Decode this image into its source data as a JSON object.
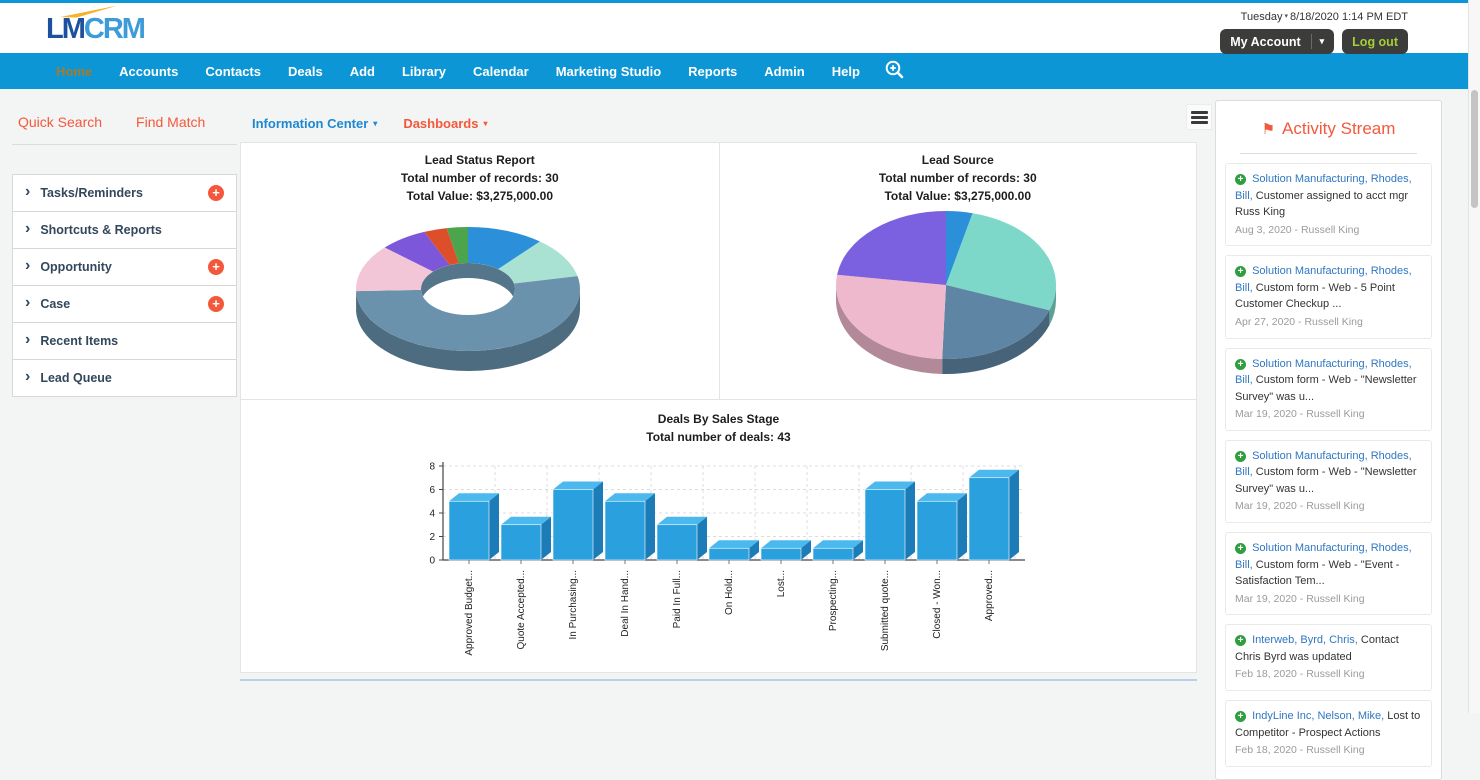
{
  "icons": {
    "caret": "▾",
    "chevron": "›",
    "plus": "+",
    "flag": "⚑"
  },
  "header": {
    "logo_lm": "LM",
    "logo_crm": "CRM",
    "day": "Tuesday",
    "datetime": "8/18/2020 1:14 PM EDT",
    "my_account": "My Account",
    "logout": "Log out"
  },
  "nav": {
    "items": [
      {
        "label": "Home",
        "active": true
      },
      {
        "label": "Accounts"
      },
      {
        "label": "Contacts"
      },
      {
        "label": "Deals"
      },
      {
        "label": "Add"
      },
      {
        "label": "Library"
      },
      {
        "label": "Calendar"
      },
      {
        "label": "Marketing Studio"
      },
      {
        "label": "Reports"
      },
      {
        "label": "Admin"
      },
      {
        "label": "Help"
      }
    ]
  },
  "sidebar": {
    "quick_search": "Quick Search",
    "find_match": "Find Match",
    "sections": [
      {
        "label": "Tasks/Reminders",
        "add": true
      },
      {
        "label": "Shortcuts & Reports"
      },
      {
        "label": "Opportunity",
        "add": true
      },
      {
        "label": "Case",
        "add": true
      },
      {
        "label": "Recent Items"
      },
      {
        "label": "Lead Queue"
      }
    ]
  },
  "main": {
    "info_center": "Information Center",
    "dashboards": "Dashboards"
  },
  "activity": {
    "title": "Activity Stream",
    "entries": [
      {
        "link": "Solution Manufacturing, Rhodes, Bill,",
        "text": "Customer assigned to acct mgr Russ King",
        "date": "Aug 3, 2020 - Russell King"
      },
      {
        "link": "Solution Manufacturing, Rhodes, Bill,",
        "text": "Custom form - Web - 5 Point Customer Checkup ...",
        "date": "Apr 27, 2020 - Russell King"
      },
      {
        "link": "Solution Manufacturing, Rhodes, Bill,",
        "text": "Custom form - Web - \"Newsletter Survey\" was u...",
        "date": "Mar 19, 2020 - Russell King"
      },
      {
        "link": "Solution Manufacturing, Rhodes, Bill,",
        "text": "Custom form - Web - \"Newsletter Survey\" was u...",
        "date": "Mar 19, 2020 - Russell King"
      },
      {
        "link": "Solution Manufacturing, Rhodes, Bill,",
        "text": "Custom form - Web - \"Event - Satisfaction Tem...",
        "date": "Mar 19, 2020 - Russell King"
      },
      {
        "link": "Interweb, Byrd, Chris,",
        "text": "Contact Chris Byrd was updated",
        "date": "Feb 18, 2020 - Russell King"
      },
      {
        "link": "IndyLine Inc, Nelson, Mike,",
        "text": "Lost to Competitor - Prospect Actions",
        "date": "Feb 18, 2020 - Russell King"
      }
    ]
  },
  "chart_data": [
    {
      "type": "pie",
      "variant": "3d-donut",
      "title": "Lead Status Report",
      "subtitle": [
        "Total number of records: 30",
        "Total Value: $3,275,000.00"
      ],
      "hole": 0.42,
      "legend": "none",
      "slices": [
        {
          "color": "#2B90D9",
          "angle": 40
        },
        {
          "color": "#A9E2D2",
          "angle": 38
        },
        {
          "color": "#6A92AC",
          "angle": 190
        },
        {
          "color": "#F3C6D7",
          "angle": 44
        },
        {
          "color": "#7C57D9",
          "angle": 25
        },
        {
          "color": "#DD4F2B",
          "angle": 12
        },
        {
          "color": "#4CA44C",
          "angle": 11
        }
      ]
    },
    {
      "type": "pie",
      "variant": "3d-pie",
      "title": "Lead Source",
      "subtitle": [
        "Total number of records: 30",
        "Total Value: $3,275,000.00"
      ],
      "hole": 0,
      "legend": "none",
      "slices": [
        {
          "color": "#2B90D9",
          "angle": 14
        },
        {
          "color": "#7ED8C9",
          "angle": 96
        },
        {
          "color": "#5E86A4",
          "angle": 72
        },
        {
          "color": "#EFB9CD",
          "angle": 96
        },
        {
          "color": "#7B60DF",
          "angle": 82
        }
      ]
    },
    {
      "type": "bar",
      "variant": "3d-bar",
      "title": "Deals By Sales Stage",
      "subtitle": [
        "Total number of deals: 43"
      ],
      "categories": [
        "Approved Budget...",
        "Quote Accepted...",
        "In Purchasing...",
        "Deal In Hand...",
        "Paid In Full...",
        "On Hold...",
        "Lost...",
        "Prospecting...",
        "Submitted quote...",
        "Closed - Won...",
        "Approved..."
      ],
      "values": [
        5,
        3,
        6,
        5,
        3,
        1,
        1,
        1,
        6,
        5,
        7
      ],
      "ylim": [
        0,
        8
      ],
      "yticks": [
        0,
        2,
        4,
        6,
        8
      ],
      "grid": true,
      "colors": {
        "front": "#2AA0DF",
        "top": "#4CB9EE",
        "side": "#1B7CB8"
      }
    }
  ],
  "colors": {
    "nav_blue": "#0D96D5",
    "accent_orange": "#F4583C",
    "link_blue": "#2F77C2",
    "info_blue": "#1E88D2",
    "active_nav": "#A57A2C",
    "logout_green": "#A5CE39",
    "navy_text": "#33475B",
    "green_plus": "#2F9E3F"
  }
}
